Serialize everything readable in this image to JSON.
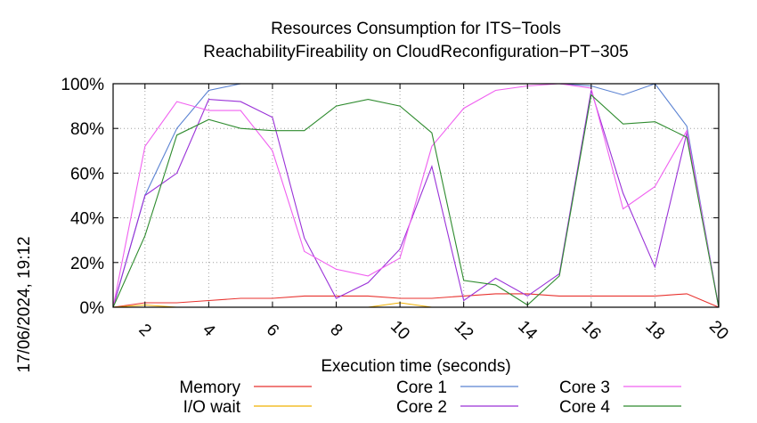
{
  "chart_data": {
    "type": "line",
    "title": "Resources Consumption for ITS−Tools",
    "subtitle": "ReachabilityFireability on CloudReconfiguration−PT−305",
    "xlabel": "Execution time (seconds)",
    "ylabel": "",
    "side_label": "17/06/2024, 19:12",
    "xlim": [
      1,
      20
    ],
    "ylim": [
      0,
      100
    ],
    "x_ticks": [
      2,
      4,
      6,
      8,
      10,
      12,
      14,
      16,
      18,
      20
    ],
    "x_tick_labels": [
      "2",
      "4",
      "6",
      "8",
      "10",
      "12",
      "14",
      "16",
      "18",
      "20"
    ],
    "y_ticks": [
      0,
      20,
      40,
      60,
      80,
      100
    ],
    "y_tick_labels": [
      "0%",
      "20%",
      "40%",
      "60%",
      "80%",
      "100%"
    ],
    "grid": true,
    "legend_position": "bottom",
    "series": [
      {
        "name": "Memory",
        "color": "#e8322e",
        "x": [
          1,
          2,
          3,
          4,
          5,
          6,
          7,
          8,
          9,
          10,
          11,
          12,
          13,
          14,
          15,
          16,
          17,
          18,
          19,
          20
        ],
        "y": [
          0,
          2,
          2,
          3,
          4,
          4,
          5,
          5,
          5,
          4,
          4,
          5,
          6,
          6,
          5,
          5,
          5,
          5,
          6,
          0
        ]
      },
      {
        "name": "I/O wait",
        "color": "#f0b000",
        "x": [
          1,
          2,
          3,
          4,
          5,
          6,
          7,
          8,
          9,
          10,
          11,
          12,
          13,
          14,
          15,
          16,
          17,
          18,
          19,
          20
        ],
        "y": [
          0,
          1,
          0,
          0,
          0,
          0,
          0,
          0,
          0,
          2,
          0,
          0,
          0,
          0,
          0,
          0,
          0,
          0,
          0,
          0
        ]
      },
      {
        "name": "Core 1",
        "color": "#5a82d2",
        "x": [
          1,
          2,
          3,
          4,
          5,
          6,
          7,
          8,
          9,
          10,
          11,
          12,
          13,
          14,
          15,
          16,
          17,
          18,
          19,
          20
        ],
        "y": [
          0,
          50,
          80,
          97,
          100,
          100,
          100,
          100,
          100,
          100,
          100,
          100,
          100,
          100,
          100,
          99,
          95,
          100,
          81,
          0
        ]
      },
      {
        "name": "Core 2",
        "color": "#9a32d8",
        "x": [
          1,
          2,
          3,
          4,
          5,
          6,
          7,
          8,
          9,
          10,
          11,
          12,
          13,
          14,
          15,
          16,
          17,
          18,
          19,
          20
        ],
        "y": [
          0,
          50,
          60,
          93,
          92,
          85,
          31,
          4,
          11,
          26,
          63,
          3,
          13,
          5,
          15,
          97,
          51,
          18,
          78,
          0
        ]
      },
      {
        "name": "Core 3",
        "color": "#f060f0",
        "x": [
          1,
          2,
          3,
          4,
          5,
          6,
          7,
          8,
          9,
          10,
          11,
          12,
          13,
          14,
          15,
          16,
          17,
          18,
          19,
          20
        ],
        "y": [
          0,
          72,
          92,
          88,
          88,
          70,
          25,
          17,
          14,
          22,
          72,
          89,
          97,
          99,
          100,
          98,
          44,
          54,
          79,
          0
        ]
      },
      {
        "name": "Core 4",
        "color": "#2e8b2e",
        "x": [
          1,
          2,
          3,
          4,
          5,
          6,
          7,
          8,
          9,
          10,
          11,
          12,
          13,
          14,
          15,
          16,
          17,
          18,
          19,
          20
        ],
        "y": [
          0,
          32,
          77,
          84,
          80,
          79,
          79,
          90,
          93,
          90,
          78,
          12,
          10,
          1,
          14,
          95,
          82,
          83,
          76,
          0
        ]
      }
    ]
  }
}
